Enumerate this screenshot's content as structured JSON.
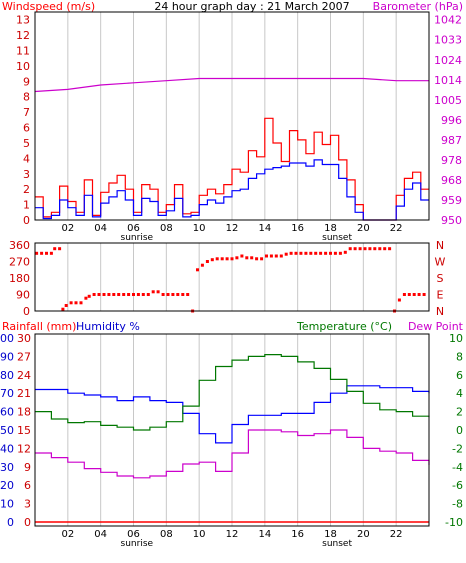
{
  "colors": {
    "background": "#ffffff",
    "frame": "#000000",
    "grid": "#c8c8c8",
    "wind": "#ff0000",
    "gust": "#ff0000",
    "avg_wind": "#0000ff",
    "barometer": "#cc00cc",
    "direction": "#ff0000",
    "humidity": "#0000ff",
    "temperature": "#007700",
    "dewpoint": "#cc00cc",
    "rainfall": "#ff0000"
  },
  "chart_data": [
    {
      "type": "line",
      "title": "24 hour graph day : 21 March 2007",
      "left_axis_label": "Windspeed (m/s)",
      "right_axis_label": "Barometer (hPa)",
      "x_ticks": [
        "02",
        "04",
        "06",
        "08",
        "10",
        "12",
        "14",
        "16",
        "18",
        "20",
        "22"
      ],
      "markers": [
        {
          "label": "sunrise",
          "hour": 6.2
        },
        {
          "label": "sunset",
          "hour": 18.4
        }
      ],
      "left_ticks": [
        "0",
        "1",
        "2",
        "3",
        "4",
        "5",
        "6",
        "7",
        "8",
        "9",
        "10",
        "11",
        "12",
        "13"
      ],
      "right_ticks": [
        "950",
        "959",
        "968",
        "978",
        "987",
        "996",
        "1005",
        "1014",
        "1024",
        "1033",
        "1042"
      ],
      "ylim_left": [
        0,
        13.5
      ],
      "grid": "vertical",
      "x_range_hours": [
        0,
        24
      ],
      "series": [
        {
          "role": "gust",
          "axis": "left",
          "x": [
            0,
            0.5,
            1,
            1.5,
            2,
            2.5,
            3,
            3.5,
            4,
            4.5,
            5,
            5.5,
            6,
            6.5,
            7,
            7.5,
            8,
            8.5,
            9,
            9.5,
            10,
            10.5,
            11,
            11.5,
            12,
            12.5,
            13,
            13.5,
            14,
            14.5,
            15,
            15.5,
            16,
            16.5,
            17,
            17.5,
            18,
            18.5,
            19,
            19.5,
            20,
            20.5,
            21,
            21.5,
            22,
            22.5,
            23,
            23.5
          ],
          "values": [
            1.5,
            0.2,
            0.5,
            2.2,
            1.2,
            0.5,
            2.6,
            0.3,
            1.8,
            2.4,
            2.9,
            2.0,
            0.5,
            2.3,
            2.0,
            0.5,
            1.0,
            2.3,
            0.4,
            0.5,
            1.6,
            2.0,
            1.7,
            2.3,
            3.3,
            3.1,
            4.5,
            4.1,
            6.6,
            5.0,
            3.8,
            5.8,
            5.2,
            4.3,
            5.7,
            4.9,
            5.5,
            3.9,
            2.6,
            1.0,
            0,
            0,
            0,
            0,
            1.6,
            2.7,
            3.1,
            2.0
          ]
        },
        {
          "role": "average",
          "axis": "left",
          "x": [
            0,
            0.5,
            1,
            1.5,
            2,
            2.5,
            3,
            3.5,
            4,
            4.5,
            5,
            5.5,
            6,
            6.5,
            7,
            7.5,
            8,
            8.5,
            9,
            9.5,
            10,
            10.5,
            11,
            11.5,
            12,
            12.5,
            13,
            13.5,
            14,
            14.5,
            15,
            15.5,
            16,
            16.5,
            17,
            17.5,
            18,
            18.5,
            19,
            19.5,
            20,
            20.5,
            21,
            21.5,
            22,
            22.5,
            23,
            23.5
          ],
          "values": [
            0.8,
            0.1,
            0.3,
            1.3,
            0.8,
            0.3,
            1.6,
            0.2,
            1.1,
            1.5,
            1.9,
            1.3,
            0.3,
            1.4,
            1.2,
            0.3,
            0.6,
            1.4,
            0.2,
            0.3,
            1.0,
            1.3,
            1.1,
            1.5,
            1.9,
            2.0,
            2.7,
            3.0,
            3.3,
            3.4,
            3.5,
            3.7,
            3.7,
            3.5,
            3.9,
            3.6,
            3.6,
            2.7,
            1.5,
            0.5,
            0,
            0,
            0,
            0,
            0.9,
            2.0,
            2.4,
            1.3
          ]
        },
        {
          "role": "barometer",
          "axis": "right",
          "x": [
            0,
            2,
            4,
            6,
            8,
            10,
            12,
            14,
            16,
            18,
            20,
            22,
            24
          ],
          "values": [
            1009,
            1010,
            1012,
            1013,
            1014,
            1015,
            1015,
            1015,
            1015,
            1015,
            1015,
            1014,
            1014
          ]
        }
      ]
    },
    {
      "type": "scatter",
      "left_ticks": [
        "0",
        "90",
        "180",
        "270",
        "360"
      ],
      "right_ticks": [
        "N",
        "E",
        "S",
        "W",
        "N"
      ],
      "ylim": [
        0,
        360
      ],
      "x_range_hours": [
        0,
        24
      ],
      "series": [
        {
          "role": "direction",
          "x": [
            0.1,
            0.4,
            0.7,
            1.0,
            1.2,
            1.5,
            1.7,
            1.9,
            2.2,
            2.5,
            2.8,
            3.1,
            3.3,
            3.6,
            3.9,
            4.2,
            4.5,
            4.8,
            5.1,
            5.4,
            5.7,
            6.0,
            6.3,
            6.6,
            6.9,
            7.2,
            7.5,
            7.8,
            8.1,
            8.4,
            8.7,
            9.0,
            9.3,
            9.6,
            9.9,
            10.2,
            10.5,
            10.8,
            11.1,
            11.4,
            11.7,
            12.0,
            12.3,
            12.6,
            12.9,
            13.2,
            13.5,
            13.8,
            14.1,
            14.4,
            14.7,
            15.0,
            15.3,
            15.6,
            15.9,
            16.2,
            16.5,
            16.8,
            17.1,
            17.4,
            17.7,
            18.0,
            18.3,
            18.6,
            18.9,
            19.2,
            19.5,
            19.8,
            20.1,
            20.4,
            20.7,
            21.0,
            21.3,
            21.6,
            21.9,
            22.2,
            22.5,
            22.8,
            23.1,
            23.4,
            23.7
          ],
          "values": [
            315,
            315,
            315,
            315,
            340,
            340,
            10,
            30,
            45,
            45,
            45,
            70,
            80,
            90,
            90,
            90,
            90,
            90,
            90,
            90,
            90,
            90,
            90,
            90,
            90,
            105,
            105,
            90,
            90,
            90,
            90,
            90,
            90,
            0,
            225,
            250,
            270,
            280,
            285,
            285,
            285,
            285,
            290,
            300,
            290,
            290,
            285,
            285,
            300,
            300,
            300,
            300,
            310,
            315,
            315,
            315,
            315,
            315,
            315,
            315,
            315,
            315,
            315,
            315,
            320,
            340,
            340,
            340,
            340,
            340,
            340,
            340,
            340,
            340,
            0,
            60,
            90,
            90,
            90,
            90,
            90
          ]
        }
      ]
    },
    {
      "type": "line",
      "left_axis_label_rain": "Rainfall (mm)",
      "left_axis_label_humidity": "Humidity %",
      "right_axis_label_temp": "Temperature (°C)",
      "right_axis_label_dew": "Dew Point",
      "x_ticks": [
        "02",
        "04",
        "06",
        "08",
        "10",
        "12",
        "14",
        "16",
        "18",
        "20",
        "22"
      ],
      "markers": [
        {
          "label": "sunrise",
          "hour": 6.2
        },
        {
          "label": "sunset",
          "hour": 18.4
        }
      ],
      "rain_ticks": [
        "0",
        "3",
        "6",
        "9",
        "12",
        "15",
        "18",
        "21",
        "24",
        "27",
        "30"
      ],
      "humidity_ticks": [
        "0",
        "10",
        "20",
        "30",
        "40",
        "50",
        "60",
        "70",
        "80",
        "90",
        "100"
      ],
      "temp_ticks": [
        "-10",
        "-8",
        "-6",
        "-4",
        "-2",
        "0",
        "2",
        "4",
        "6",
        "8",
        "10"
      ],
      "humidity_range": [
        0,
        100
      ],
      "temp_range": [
        -10,
        10
      ],
      "x_range_hours": [
        0,
        24
      ],
      "series": [
        {
          "role": "humidity",
          "axis": "left",
          "x": [
            0,
            1,
            2,
            3,
            4,
            5,
            6,
            7,
            8,
            9,
            10,
            11,
            12,
            13,
            14,
            15,
            16,
            17,
            18,
            19,
            20,
            21,
            22,
            23,
            24
          ],
          "values": [
            72,
            72,
            70,
            69,
            68,
            66,
            68,
            66,
            65,
            59,
            48,
            43,
            53,
            58,
            58,
            59,
            59,
            65,
            70,
            74,
            74,
            73,
            73,
            71,
            70
          ]
        },
        {
          "role": "temperature",
          "axis": "right",
          "x": [
            0,
            1,
            2,
            3,
            4,
            5,
            6,
            7,
            8,
            9,
            10,
            11,
            12,
            13,
            14,
            15,
            16,
            17,
            18,
            19,
            20,
            21,
            22,
            23,
            24
          ],
          "values": [
            2.0,
            1.2,
            0.8,
            0.9,
            0.5,
            0.3,
            0.0,
            0.3,
            0.9,
            2.6,
            5.4,
            6.9,
            7.6,
            8.0,
            8.2,
            8.0,
            7.4,
            6.7,
            5.5,
            4.2,
            2.9,
            2.2,
            2.0,
            1.5,
            1.4
          ]
        },
        {
          "role": "dewpoint",
          "axis": "right",
          "x": [
            0,
            1,
            2,
            3,
            4,
            5,
            6,
            7,
            8,
            9,
            10,
            11,
            12,
            13,
            14,
            15,
            16,
            17,
            18,
            19,
            20,
            21,
            22,
            23,
            24
          ],
          "values": [
            -2.5,
            -3.0,
            -3.5,
            -4.2,
            -4.6,
            -5.0,
            -5.2,
            -5.0,
            -4.5,
            -3.7,
            -3.5,
            -4.5,
            -2.5,
            0.0,
            0.0,
            -0.2,
            -0.6,
            -0.4,
            0.0,
            -0.8,
            -2.0,
            -2.3,
            -2.5,
            -3.3,
            -3.8
          ]
        },
        {
          "role": "rainfall",
          "axis": "rain",
          "x": [
            0,
            24
          ],
          "values": [
            0,
            0
          ]
        }
      ]
    }
  ]
}
